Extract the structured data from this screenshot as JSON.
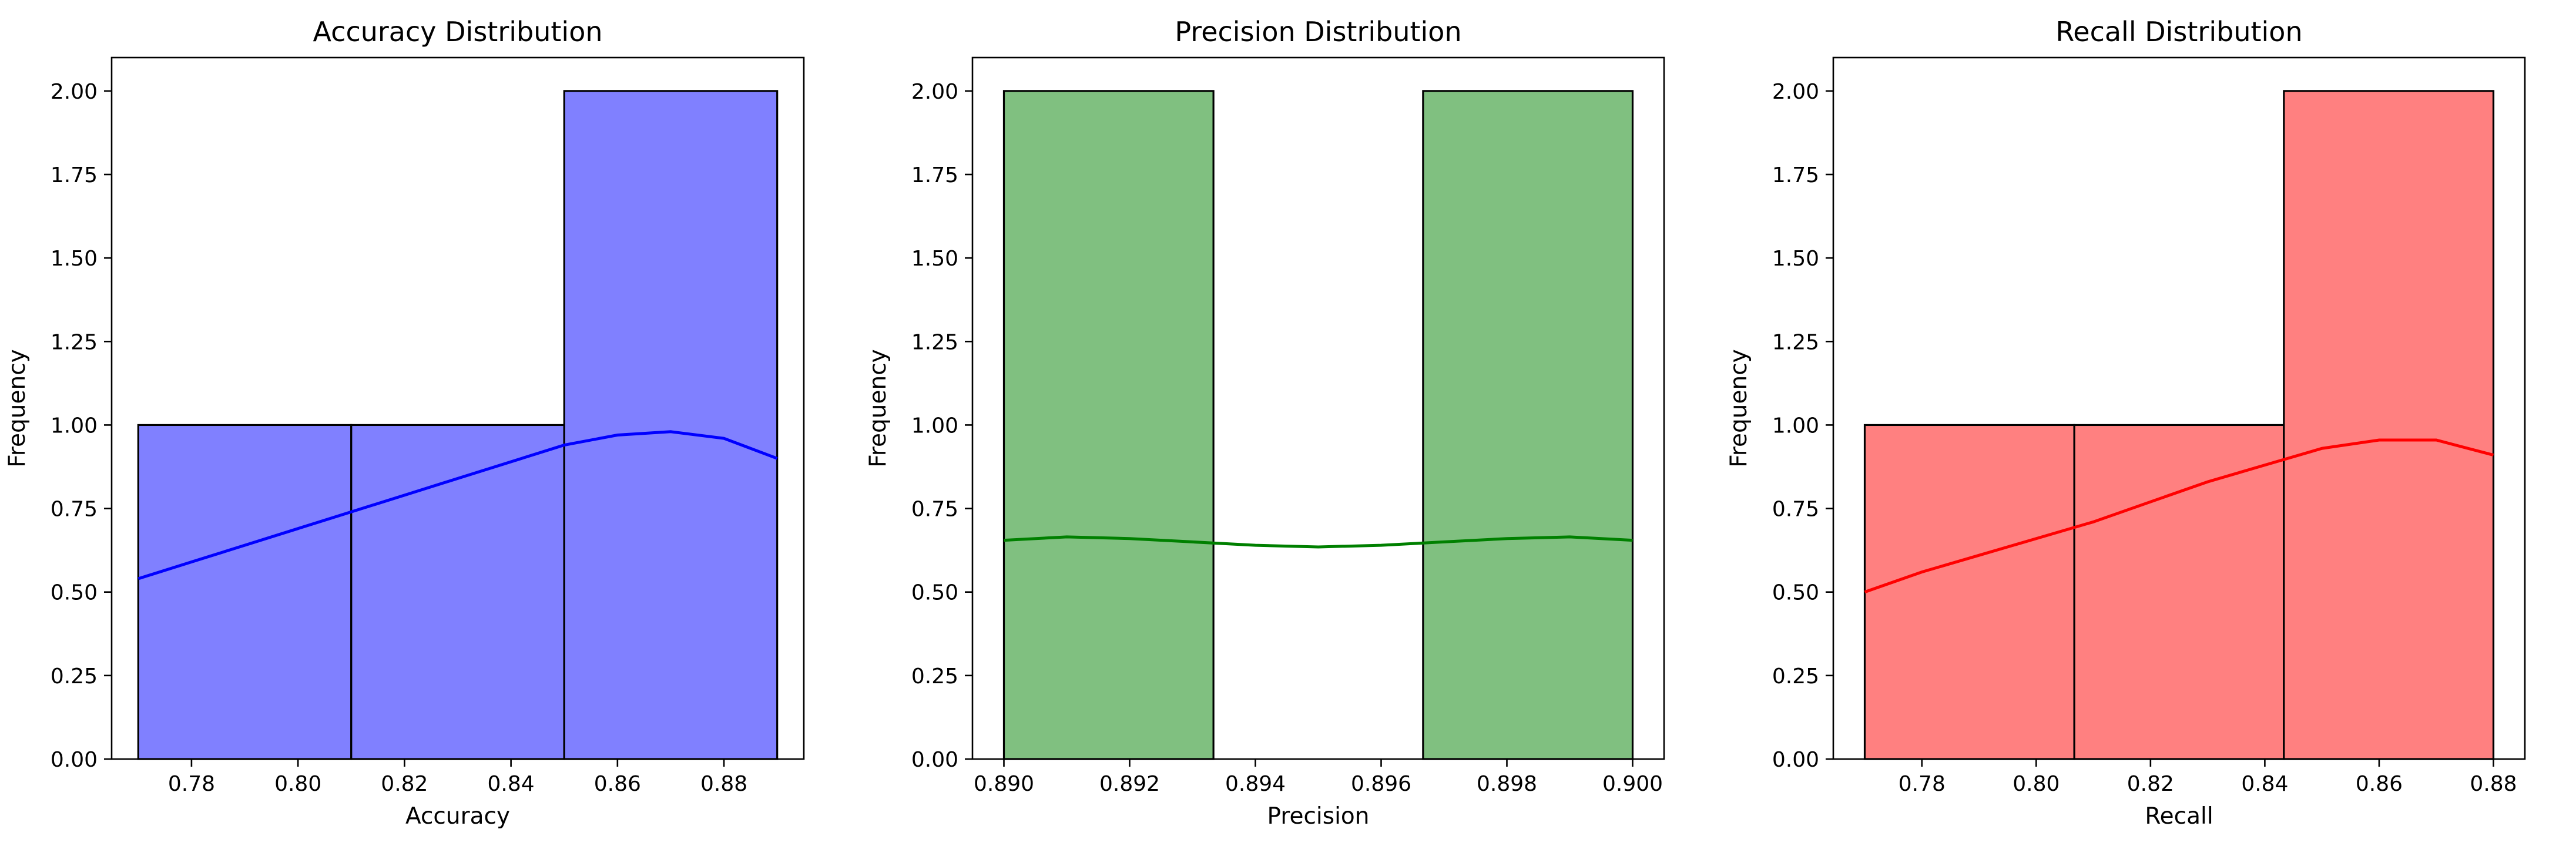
{
  "chart_data": [
    {
      "type": "bar",
      "subtype": "histogram-with-kde",
      "title": "Accuracy Distribution",
      "xlabel": "Accuracy",
      "ylabel": "Frequency",
      "xlim": [
        0.765,
        0.895
      ],
      "ylim": [
        0,
        2.1
      ],
      "xticks": [
        0.78,
        0.8,
        0.82,
        0.84,
        0.86,
        0.88
      ],
      "xtick_labels": [
        "0.78",
        "0.80",
        "0.82",
        "0.84",
        "0.86",
        "0.88"
      ],
      "yticks": [
        0,
        0.25,
        0.5,
        0.75,
        1.0,
        1.25,
        1.5,
        1.75,
        2.0
      ],
      "ytick_labels": [
        "0.00",
        "0.25",
        "0.50",
        "0.75",
        "1.00",
        "1.25",
        "1.50",
        "1.75",
        "2.00"
      ],
      "bin_edges": [
        0.77,
        0.81,
        0.85,
        0.89
      ],
      "counts": [
        1,
        1,
        2
      ],
      "bar_color": "#8080ff",
      "kde_color": "#0000ff",
      "kde": {
        "x": [
          0.77,
          0.78,
          0.79,
          0.8,
          0.81,
          0.82,
          0.83,
          0.84,
          0.85,
          0.86,
          0.87,
          0.88,
          0.89
        ],
        "y": [
          0.54,
          0.59,
          0.64,
          0.69,
          0.74,
          0.79,
          0.84,
          0.89,
          0.94,
          0.97,
          0.98,
          0.96,
          0.9
        ]
      },
      "grid": false
    },
    {
      "type": "bar",
      "subtype": "histogram-with-kde",
      "title": "Precision Distribution",
      "xlabel": "Precision",
      "ylabel": "Frequency",
      "xlim": [
        0.8895,
        0.9005
      ],
      "ylim": [
        0,
        2.1
      ],
      "xticks": [
        0.89,
        0.892,
        0.894,
        0.896,
        0.898,
        0.9
      ],
      "xtick_labels": [
        "0.890",
        "0.892",
        "0.894",
        "0.896",
        "0.898",
        "0.900"
      ],
      "yticks": [
        0,
        0.25,
        0.5,
        0.75,
        1.0,
        1.25,
        1.5,
        1.75,
        2.0
      ],
      "ytick_labels": [
        "0.00",
        "0.25",
        "0.50",
        "0.75",
        "1.00",
        "1.25",
        "1.50",
        "1.75",
        "2.00"
      ],
      "bin_edges": [
        0.89,
        0.893333,
        0.896667,
        0.9
      ],
      "counts": [
        2,
        0,
        2
      ],
      "bar_color": "#80c080",
      "kde_color": "#008000",
      "kde": {
        "x": [
          0.89,
          0.891,
          0.892,
          0.893,
          0.894,
          0.895,
          0.896,
          0.897,
          0.898,
          0.899,
          0.9
        ],
        "y": [
          0.655,
          0.665,
          0.66,
          0.65,
          0.64,
          0.635,
          0.64,
          0.65,
          0.66,
          0.665,
          0.655
        ]
      },
      "grid": false
    },
    {
      "type": "bar",
      "subtype": "histogram-with-kde",
      "title": "Recall Distribution",
      "xlabel": "Recall",
      "ylabel": "Frequency",
      "xlim": [
        0.7645,
        0.8855
      ],
      "ylim": [
        0,
        2.1
      ],
      "xticks": [
        0.78,
        0.8,
        0.82,
        0.84,
        0.86,
        0.88
      ],
      "xtick_labels": [
        "0.78",
        "0.80",
        "0.82",
        "0.84",
        "0.86",
        "0.88"
      ],
      "yticks": [
        0,
        0.25,
        0.5,
        0.75,
        1.0,
        1.25,
        1.5,
        1.75,
        2.0
      ],
      "ytick_labels": [
        "0.00",
        "0.25",
        "0.50",
        "0.75",
        "1.00",
        "1.25",
        "1.50",
        "1.75",
        "2.00"
      ],
      "bin_edges": [
        0.77,
        0.806667,
        0.843333,
        0.88
      ],
      "counts": [
        1,
        1,
        2
      ],
      "bar_color": "#ff8080",
      "kde_color": "#ff0000",
      "kde": {
        "x": [
          0.77,
          0.78,
          0.79,
          0.8,
          0.81,
          0.82,
          0.83,
          0.84,
          0.85,
          0.86,
          0.87,
          0.88
        ],
        "y": [
          0.5,
          0.56,
          0.61,
          0.66,
          0.71,
          0.77,
          0.83,
          0.88,
          0.93,
          0.955,
          0.955,
          0.91
        ]
      },
      "grid": false
    }
  ]
}
